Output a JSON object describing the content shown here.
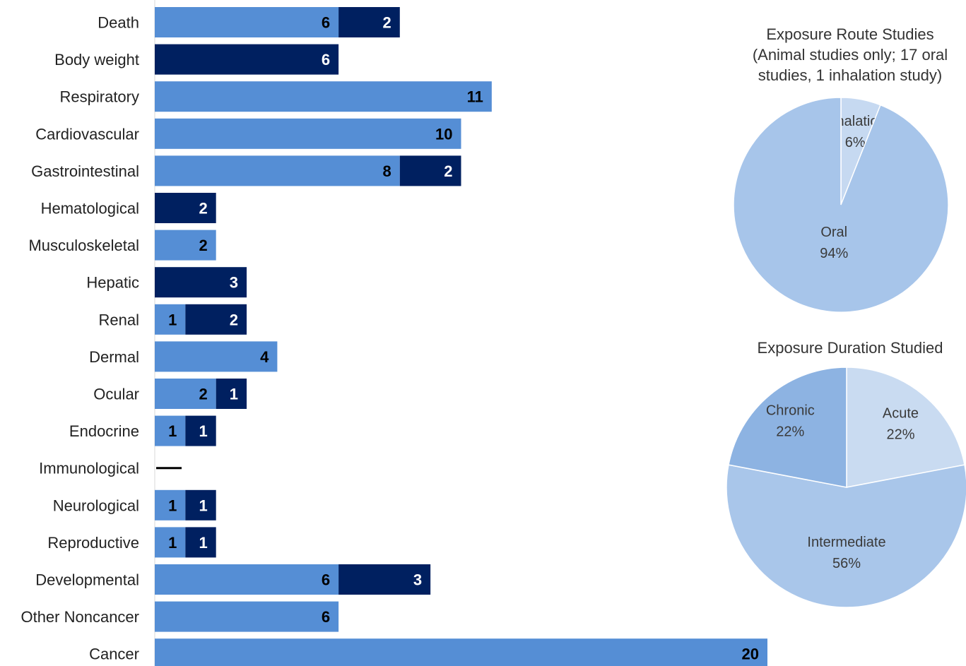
{
  "chart_data": [
    {
      "type": "bar",
      "orientation": "horizontal",
      "stacked": true,
      "categories": [
        "Death",
        "Body weight",
        "Respiratory",
        "Cardiovascular",
        "Gastrointestinal",
        "Hematological",
        "Musculoskeletal",
        "Hepatic",
        "Renal",
        "Dermal",
        "Ocular",
        "Endocrine",
        "Immunological",
        "Neurological",
        "Reproductive",
        "Developmental",
        "Other Noncancer",
        "Cancer"
      ],
      "series": [
        {
          "color": "#558ED5",
          "values": [
            6,
            0,
            11,
            10,
            8,
            0,
            2,
            0,
            1,
            4,
            2,
            1,
            0,
            1,
            1,
            6,
            6,
            20
          ]
        },
        {
          "color": "#002060",
          "values": [
            2,
            6,
            0,
            0,
            2,
            2,
            0,
            3,
            2,
            0,
            1,
            1,
            0,
            1,
            1,
            3,
            0,
            0
          ]
        }
      ],
      "no_data_marker": [
        "Immunological"
      ],
      "grid": false,
      "legend": "none",
      "xlim": [
        0,
        20
      ]
    },
    {
      "type": "pie",
      "title": "Exposure Route Studies",
      "subtitle_lines": [
        "(Animal studies only; 17 oral",
        "studies, 1 inhalation study)"
      ],
      "slices": [
        {
          "label": "Inhalation",
          "percent_label": "6%",
          "value": 6,
          "color": "#C6D9F1"
        },
        {
          "label": "Oral",
          "percent_label": "94%",
          "value": 94,
          "color": "#A7C5EA"
        }
      ]
    },
    {
      "type": "pie",
      "title": "Exposure Duration Studied",
      "slices": [
        {
          "label": "Acute",
          "percent_label": "22%",
          "value": 22,
          "color": "#C9DBF1"
        },
        {
          "label": "Intermediate",
          "percent_label": "56%",
          "value": 56,
          "color": "#A9C6EA"
        },
        {
          "label": "Chronic",
          "percent_label": "22%",
          "value": 22,
          "color": "#8DB3E2"
        }
      ]
    }
  ]
}
